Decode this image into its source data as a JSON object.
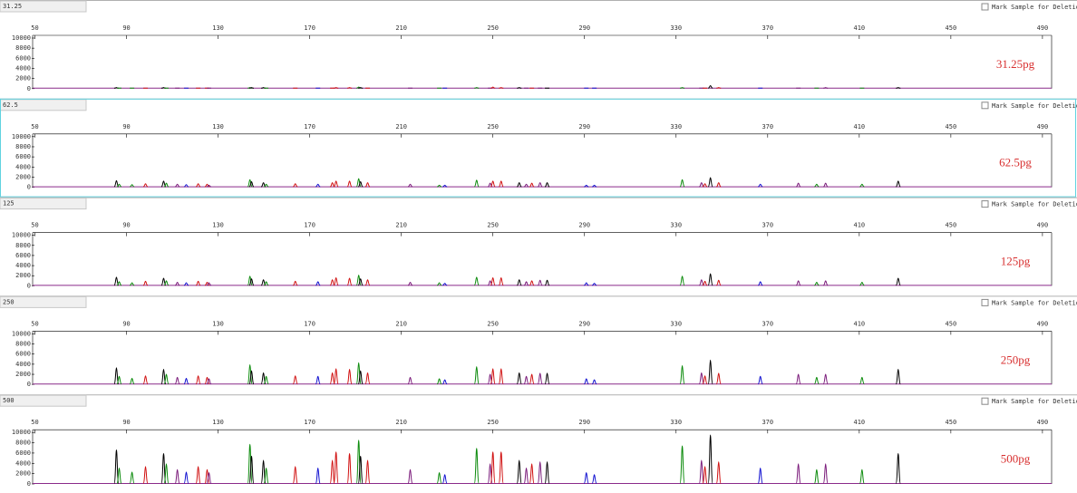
{
  "peaks": {
    "x": [
      85.6,
      86.8,
      92.4,
      98.3,
      106.2,
      107.4,
      112.2,
      116.1,
      121.3,
      125.2,
      126.0,
      143.9,
      144.6,
      149.8,
      151.0,
      163.7,
      173.6,
      179.9,
      181.5,
      187.4,
      191.4,
      192.2,
      195.3,
      213.9,
      226.6,
      229.0,
      242.9,
      248.8,
      250.0,
      253.6,
      261.5,
      264.6,
      267.0,
      270.6,
      273.7,
      290.8,
      294.3,
      332.7,
      341.1,
      342.6,
      345.0,
      348.6,
      366.8,
      383.4,
      391.4,
      395.3,
      411.2,
      427.0
    ],
    "colors": [
      "#000000",
      "#0a8a0a",
      "#0a8a0a",
      "#d01010",
      "#000000",
      "#0a8a0a",
      "#7a1a7a",
      "#1010d0",
      "#d01010",
      "#d01010",
      "#7a1a7a",
      "#0a8a0a",
      "#000000",
      "#000000",
      "#0a8a0a",
      "#d01010",
      "#1010d0",
      "#d01010",
      "#d01010",
      "#d01010",
      "#0a8a0a",
      "#000000",
      "#d01010",
      "#7a1a7a",
      "#0a8a0a",
      "#1010d0",
      "#0a8a0a",
      "#7a1a7a",
      "#d01010",
      "#d01010",
      "#000000",
      "#7a1a7a",
      "#d01010",
      "#7a1a7a",
      "#000000",
      "#1010d0",
      "#1010d0",
      "#0a8a0a",
      "#7a1a7a",
      "#d01010",
      "#000000",
      "#d01010",
      "#1010d0",
      "#7a1a7a",
      "#0a8a0a",
      "#7a1a7a",
      "#0a8a0a",
      "#000000"
    ]
  },
  "chart_data": [
    {
      "type": "electropherogram",
      "title": "31.25",
      "annotation": "31.25pg",
      "checkbox_label": "Mark Sample for Deletion",
      "xlim": [
        49,
        494
      ],
      "xticks": [
        50,
        90,
        130,
        170,
        210,
        250,
        290,
        330,
        370,
        410,
        450,
        490
      ],
      "ylim": [
        0,
        10000
      ],
      "yticks": [
        0,
        2000,
        4000,
        6000,
        8000,
        10000
      ],
      "values": [
        200,
        100,
        100,
        100,
        200,
        100,
        100,
        100,
        100,
        100,
        100,
        200,
        200,
        200,
        100,
        100,
        100,
        100,
        200,
        200,
        300,
        200,
        100,
        100,
        100,
        100,
        200,
        100,
        300,
        200,
        200,
        100,
        100,
        100,
        100,
        100,
        100,
        200,
        100,
        100,
        600,
        200,
        100,
        100,
        100,
        200,
        100,
        200
      ]
    },
    {
      "type": "electropherogram",
      "title": "62.5",
      "annotation": "62.5pg",
      "checkbox_label": "Mark Sample for Deletion",
      "xlim": [
        49,
        494
      ],
      "xticks": [
        50,
        90,
        130,
        170,
        210,
        250,
        290,
        330,
        370,
        410,
        450,
        490
      ],
      "ylim": [
        0,
        10000
      ],
      "yticks": [
        0,
        2000,
        4000,
        6000,
        8000,
        10000
      ],
      "values": [
        1300,
        600,
        500,
        700,
        1200,
        800,
        600,
        500,
        700,
        600,
        400,
        1500,
        1100,
        900,
        600,
        700,
        600,
        900,
        1200,
        1200,
        1700,
        1100,
        900,
        600,
        400,
        400,
        1400,
        800,
        1200,
        1200,
        900,
        600,
        800,
        900,
        900,
        400,
        400,
        1500,
        900,
        700,
        1900,
        900,
        600,
        800,
        600,
        800,
        600,
        1200
      ]
    },
    {
      "type": "electropherogram",
      "title": "125",
      "annotation": "125pg",
      "checkbox_label": "Mark Sample for Deletion",
      "xlim": [
        49,
        494
      ],
      "xticks": [
        50,
        90,
        130,
        170,
        210,
        250,
        290,
        330,
        370,
        410,
        450,
        490
      ],
      "ylim": [
        0,
        10000
      ],
      "yticks": [
        0,
        2000,
        4000,
        6000,
        8000,
        10000
      ],
      "values": [
        1700,
        800,
        600,
        900,
        1500,
        1000,
        700,
        600,
        900,
        700,
        600,
        1900,
        1400,
        1200,
        800,
        900,
        800,
        1200,
        1600,
        1500,
        2100,
        1400,
        1200,
        700,
        600,
        500,
        1700,
        1000,
        1600,
        1600,
        1200,
        800,
        1000,
        1100,
        1100,
        600,
        500,
        1900,
        1200,
        900,
        2400,
        1100,
        800,
        1000,
        700,
        1000,
        700,
        1500
      ]
    },
    {
      "type": "electropherogram",
      "title": "250",
      "annotation": "250pg",
      "checkbox_label": "Mark Sample for Deletion",
      "xlim": [
        49,
        494
      ],
      "xticks": [
        50,
        90,
        130,
        170,
        210,
        250,
        290,
        330,
        370,
        410,
        450,
        490
      ],
      "ylim": [
        0,
        10000
      ],
      "yticks": [
        0,
        2000,
        4000,
        6000,
        8000,
        10000
      ],
      "values": [
        3300,
        1600,
        1200,
        1700,
        3000,
        2000,
        1400,
        1200,
        1700,
        1400,
        1100,
        3900,
        2700,
        2300,
        1600,
        1700,
        1600,
        2300,
        3100,
        3000,
        4300,
        2700,
        2300,
        1400,
        1100,
        900,
        3500,
        2000,
        3100,
        3100,
        2300,
        1600,
        2000,
        2200,
        2200,
        1100,
        900,
        3700,
        2300,
        1700,
        4800,
        2200,
        1600,
        2000,
        1400,
        2000,
        1400,
        3000
      ]
    },
    {
      "type": "electropherogram",
      "title": "500",
      "annotation": "500pg",
      "checkbox_label": "Mark Sample for Deletion",
      "xlim": [
        49,
        494
      ],
      "xticks": [
        50,
        90,
        130,
        170,
        210,
        250,
        290,
        330,
        370,
        410,
        450,
        490
      ],
      "ylim": [
        0,
        10000
      ],
      "yticks": [
        0,
        2000,
        4000,
        6000,
        8000,
        10000
      ],
      "values": [
        6600,
        3100,
        2300,
        3400,
        5900,
        3900,
        2800,
        2300,
        3400,
        2800,
        2200,
        7700,
        5400,
        4600,
        3100,
        3400,
        3100,
        4600,
        6200,
        5900,
        8500,
        5400,
        4600,
        2800,
        2200,
        1800,
        6900,
        3900,
        6200,
        6200,
        4600,
        3100,
        3900,
        4300,
        4300,
        2200,
        1800,
        7400,
        4600,
        3400,
        9500,
        4300,
        3100,
        3900,
        2800,
        3900,
        2800,
        5900
      ]
    }
  ]
}
